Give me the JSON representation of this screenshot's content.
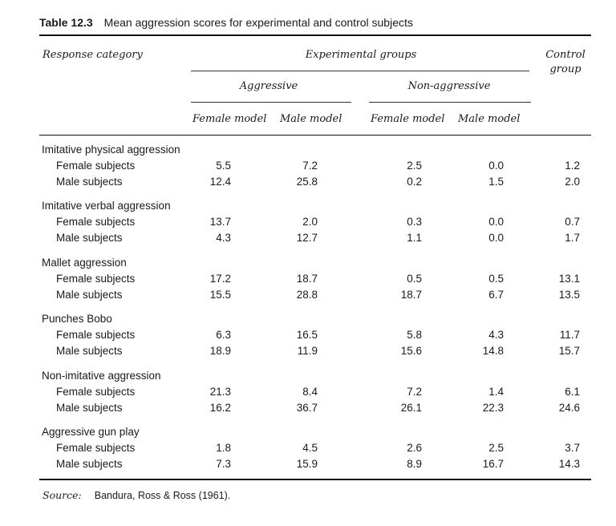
{
  "caption": {
    "number": "Table 12.3",
    "text": "Mean aggression scores for experimental and control subjects"
  },
  "headers": {
    "response_category": "Response category",
    "experimental_groups": "Experimental groups",
    "control_group_line1": "Control",
    "control_group_line2": "group",
    "aggressive": "Aggressive",
    "non_aggressive": "Non-aggressive",
    "female_model_1": "Female model",
    "male_model_1": "Male model",
    "female_model_2": "Female model",
    "male_model_2": "Male model"
  },
  "groups": [
    {
      "category": "Imitative physical aggression",
      "rows": [
        {
          "label": "Female subjects",
          "values": [
            "5.5",
            "7.2",
            "2.5",
            "0.0",
            "1.2"
          ]
        },
        {
          "label": "Male subjects",
          "values": [
            "12.4",
            "25.8",
            "0.2",
            "1.5",
            "2.0"
          ]
        }
      ]
    },
    {
      "category": "Imitative verbal aggression",
      "rows": [
        {
          "label": "Female subjects",
          "values": [
            "13.7",
            "2.0",
            "0.3",
            "0.0",
            "0.7"
          ]
        },
        {
          "label": "Male subjects",
          "values": [
            "4.3",
            "12.7",
            "1.1",
            "0.0",
            "1.7"
          ]
        }
      ]
    },
    {
      "category": "Mallet aggression",
      "rows": [
        {
          "label": "Female subjects",
          "values": [
            "17.2",
            "18.7",
            "0.5",
            "0.5",
            "13.1"
          ]
        },
        {
          "label": "Male subjects",
          "values": [
            "15.5",
            "28.8",
            "18.7",
            "6.7",
            "13.5"
          ]
        }
      ]
    },
    {
      "category": "Punches Bobo",
      "rows": [
        {
          "label": "Female subjects",
          "values": [
            "6.3",
            "16.5",
            "5.8",
            "4.3",
            "11.7"
          ]
        },
        {
          "label": "Male subjects",
          "values": [
            "18.9",
            "11.9",
            "15.6",
            "14.8",
            "15.7"
          ]
        }
      ]
    },
    {
      "category": "Non-imitative aggression",
      "rows": [
        {
          "label": "Female subjects",
          "values": [
            "21.3",
            "8.4",
            "7.2",
            "1.4",
            "6.1"
          ]
        },
        {
          "label": "Male subjects",
          "values": [
            "16.2",
            "36.7",
            "26.1",
            "22.3",
            "24.6"
          ]
        }
      ]
    },
    {
      "category": "Aggressive gun play",
      "rows": [
        {
          "label": "Female subjects",
          "values": [
            "1.8",
            "4.5",
            "2.6",
            "2.5",
            "3.7"
          ]
        },
        {
          "label": "Male subjects",
          "values": [
            "7.3",
            "15.9",
            "8.9",
            "16.7",
            "14.3"
          ]
        }
      ]
    }
  ],
  "source": {
    "label": "Source:",
    "text": "Bandura, Ross & Ross (1961)."
  }
}
